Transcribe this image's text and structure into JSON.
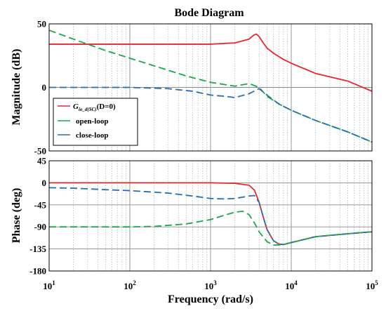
{
  "chart_data": {
    "type": "line",
    "title": "Bode Diagram",
    "xlabel": "Frequency  (rad/s)",
    "xscale": "log",
    "xlim": [
      10,
      100000
    ],
    "x_ticks": [
      {
        "base": "10",
        "exp": "1"
      },
      {
        "base": "10",
        "exp": "2"
      },
      {
        "base": "10",
        "exp": "3"
      },
      {
        "base": "10",
        "exp": "4"
      },
      {
        "base": "10",
        "exp": "5"
      }
    ],
    "magnitude": {
      "ylabel": "Magnitude (dB)",
      "ylim": [
        -50,
        50
      ],
      "yticks": [
        "50",
        "0",
        "-50"
      ],
      "grid": true,
      "legend": {
        "placement": "bottom-left",
        "entries": [
          {
            "label_main": "G",
            "label_sub": "io_d(SC)",
            "label_rest": "(D=0)",
            "color": "#e8262b"
          },
          {
            "label_main": "open-loop",
            "color": "#1fa64a"
          },
          {
            "label_main": "close-loop",
            "color": "#2a6fad"
          }
        ]
      },
      "series": [
        {
          "color": "#e8262b",
          "dash": "solid",
          "x": [
            10,
            100,
            1000,
            2000,
            3000,
            3400,
            3700,
            4000,
            4500,
            5000,
            6000,
            8000,
            10000,
            20000,
            50000,
            100000
          ],
          "y": [
            34,
            34,
            34,
            35,
            38,
            41,
            42,
            40,
            35,
            31,
            27,
            22,
            19,
            11,
            5,
            -3
          ]
        },
        {
          "color": "#1fa64a",
          "dash": "dashed",
          "x": [
            10,
            20,
            50,
            100,
            200,
            500,
            1000,
            2000,
            3000,
            4000,
            5000,
            7000,
            10000,
            20000,
            50000,
            100000
          ],
          "y": [
            45,
            38,
            29,
            23,
            17,
            9,
            4,
            1,
            3,
            0,
            -7,
            -13,
            -18,
            -26,
            -35,
            -43
          ]
        },
        {
          "color": "#2a6fad",
          "dash": "dashed",
          "x": [
            10,
            100,
            300,
            600,
            1000,
            1500,
            2000,
            3000,
            4000,
            5000,
            7000,
            10000,
            20000,
            50000,
            100000
          ],
          "y": [
            0,
            0,
            -1,
            -3,
            -6,
            -7,
            -8,
            -5,
            -1,
            -6,
            -13,
            -18,
            -26,
            -35,
            -43
          ]
        }
      ]
    },
    "phase": {
      "ylabel": "Phase (deg)",
      "ylim": [
        -180,
        45
      ],
      "yticks": [
        "45",
        "0",
        "-45",
        "-90",
        "-135",
        "-180"
      ],
      "grid": true,
      "series": [
        {
          "color": "#e8262b",
          "dash": "solid",
          "x": [
            10,
            100,
            1000,
            2000,
            3000,
            3500,
            4000,
            4500,
            5000,
            6000,
            7000,
            8000,
            10000,
            15000,
            20000,
            50000,
            100000
          ],
          "y": [
            0,
            0,
            0,
            -1,
            -5,
            -15,
            -40,
            -70,
            -95,
            -118,
            -125,
            -126,
            -122,
            -115,
            -110,
            -104,
            -100
          ]
        },
        {
          "color": "#2a6fad",
          "dash": "dashed",
          "x": [
            10,
            20,
            50,
            100,
            300,
            600,
            1000,
            1500,
            2000,
            3000,
            3500,
            4000,
            4500,
            5000,
            6000,
            7000,
            8000,
            10000,
            15000,
            20000,
            50000,
            100000
          ],
          "y": [
            -10,
            -11,
            -14,
            -16,
            -21,
            -27,
            -32,
            -33,
            -32,
            -27,
            -26,
            -40,
            -70,
            -95,
            -118,
            -125,
            -126,
            -122,
            -115,
            -110,
            -104,
            -100
          ]
        },
        {
          "color": "#1fa64a",
          "dash": "dashed",
          "x": [
            10,
            100,
            200,
            500,
            1000,
            1500,
            2000,
            2500,
            3000,
            3500,
            4000,
            5000,
            6000,
            7000,
            8000,
            10000,
            15000,
            20000,
            50000,
            100000
          ],
          "y": [
            -90,
            -90,
            -89,
            -84,
            -75,
            -66,
            -60,
            -58,
            -65,
            -82,
            -100,
            -120,
            -127,
            -127,
            -126,
            -122,
            -115,
            -110,
            -104,
            -100
          ]
        }
      ]
    }
  }
}
